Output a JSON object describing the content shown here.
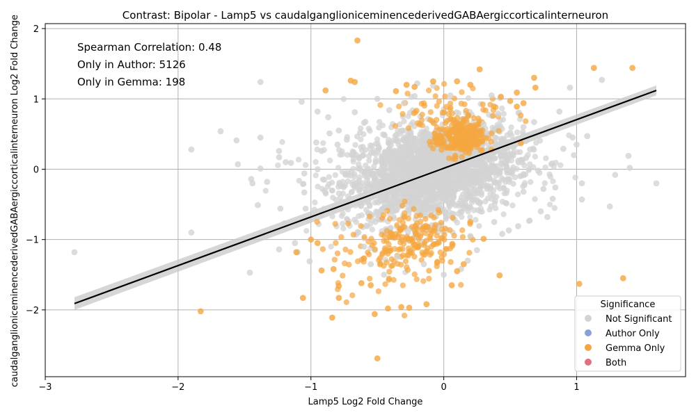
{
  "chart_data": {
    "type": "scatter",
    "title": "Contrast: Bipolar - Lamp5 vs caudalganglioniceminencederivedGABAergiccorticalinterneuron",
    "xlabel": "Lamp5 Log2 Fold Change",
    "ylabel": "caudalganglioniceminencederivedGABAergiccorticalinterneuron Log2 Fold Change",
    "xlim": [
      -3.0,
      1.82
    ],
    "ylim": [
      -2.95,
      2.07
    ],
    "x_ticks": [
      -3,
      -2,
      -1,
      0,
      1
    ],
    "x_tick_labels": [
      "−3",
      "−2",
      "−1",
      "0",
      "1"
    ],
    "y_ticks": [
      -2,
      -1,
      0,
      1,
      2
    ],
    "y_tick_labels": [
      "−2",
      "−1",
      "0",
      "1",
      "2"
    ],
    "grid": true,
    "annotations": [
      "Spearman Correlation: 0.48",
      "Only in Author: 5126",
      "Only in Gemma: 198"
    ],
    "legend": {
      "title": "Significance",
      "placement": "lower-right",
      "entries": [
        {
          "label": "Not Significant",
          "color": "#d3d3d3"
        },
        {
          "label": "Author Only",
          "color": "#88a0d8"
        },
        {
          "label": "Gemma Only",
          "color": "#f5a640"
        },
        {
          "label": "Both",
          "color": "#e07080"
        }
      ]
    },
    "regression": {
      "start": [
        -2.78,
        -1.91
      ],
      "end": [
        1.6,
        1.12
      ],
      "ci_halfwidth_start": 0.09,
      "ci_halfwidth_end": 0.07
    },
    "series": [
      {
        "name": "Not Significant",
        "color": "#d3d3d3",
        "points": [
          [
            -2.78,
            -1.18
          ],
          [
            -1.9,
            0.28
          ],
          [
            -1.9,
            -0.9
          ],
          [
            -1.68,
            0.54
          ],
          [
            -1.56,
            0.41
          ],
          [
            -1.55,
            0.07
          ],
          [
            -1.45,
            -0.14
          ],
          [
            -1.44,
            -0.2
          ],
          [
            -1.46,
            -1.47
          ],
          [
            -1.38,
            1.24
          ],
          [
            -1.38,
            0.45
          ],
          [
            -1.38,
            0.01
          ],
          [
            -1.4,
            -0.51
          ],
          [
            -1.33,
            -0.18
          ],
          [
            -1.24,
            0.26
          ],
          [
            -1.24,
            0.17
          ],
          [
            -1.23,
            -0.56
          ],
          [
            -1.24,
            -1.14
          ],
          [
            -1.19,
            0.1
          ],
          [
            -1.15,
            0.09
          ],
          [
            -1.2,
            -0.77
          ],
          [
            -1.12,
            -1.05
          ],
          [
            -1.1,
            -1.18
          ],
          [
            -1.07,
            0.96
          ],
          [
            -1.05,
            -0.06
          ],
          [
            -1.05,
            -0.33
          ],
          [
            -1.04,
            -0.56
          ],
          [
            -1.01,
            -1.31
          ],
          [
            -0.95,
            0.82
          ],
          [
            -0.96,
            0.38
          ],
          [
            -0.92,
            0.26
          ],
          [
            -0.87,
            0.74
          ],
          [
            -0.86,
            0.51
          ],
          [
            -0.79,
            0.55
          ],
          [
            -0.73,
            0.42
          ],
          [
            -0.67,
            0.81
          ],
          [
            -0.63,
            0.52
          ],
          [
            -0.6,
            0.66
          ],
          [
            -0.55,
            -1.35
          ],
          [
            -0.41,
            0.84
          ],
          [
            -0.3,
            0.94
          ],
          [
            -0.22,
            1.04
          ],
          [
            -0.2,
            1.22
          ],
          [
            -0.08,
            1.19
          ],
          [
            0.05,
            1.05
          ],
          [
            0.13,
            -1.42
          ],
          [
            0.18,
            -1.3
          ],
          [
            0.3,
            0.64
          ],
          [
            0.41,
            0.79
          ],
          [
            0.47,
            0.33
          ],
          [
            0.5,
            0.52
          ],
          [
            0.56,
            0.12
          ],
          [
            0.6,
            -0.32
          ],
          [
            0.62,
            0.16
          ],
          [
            0.65,
            0.28
          ],
          [
            0.68,
            0.67
          ],
          [
            0.71,
            -0.02
          ],
          [
            0.73,
            -0.6
          ],
          [
            0.75,
            -0.28
          ],
          [
            0.77,
            0.51
          ],
          [
            0.78,
            -0.68
          ],
          [
            0.82,
            -0.42
          ],
          [
            0.84,
            -0.26
          ],
          [
            0.87,
            0.82
          ],
          [
            0.9,
            0.29
          ],
          [
            0.95,
            1.16
          ],
          [
            0.97,
            0.45
          ],
          [
            0.98,
            0.2
          ],
          [
            1.0,
            0.35
          ],
          [
            1.04,
            -0.2
          ],
          [
            1.04,
            -0.43
          ],
          [
            1.08,
            0.47
          ],
          [
            1.19,
            1.27
          ],
          [
            1.25,
            -0.53
          ],
          [
            1.29,
            -0.08
          ],
          [
            1.39,
            0.19
          ],
          [
            1.4,
            0.02
          ],
          [
            1.6,
            -0.2
          ],
          [
            0.49,
            -0.87
          ],
          [
            0.44,
            -0.92
          ],
          [
            0.56,
            -0.81
          ],
          [
            0.2,
            -0.95
          ],
          [
            -0.45,
            -1.5
          ],
          [
            -0.35,
            -1.25
          ],
          [
            0.0,
            -1.5
          ],
          [
            -0.6,
            -1.1
          ],
          [
            -0.5,
            1.0
          ],
          [
            0.36,
            1.05
          ],
          [
            -0.8,
            0.35
          ],
          [
            -0.9,
            -0.15
          ],
          [
            0.25,
            -1.15
          ],
          [
            -0.15,
            -1.35
          ],
          [
            0.38,
            -0.75
          ],
          [
            0.6,
            0.6
          ],
          [
            -0.95,
            0.0
          ]
        ]
      },
      {
        "name": "Gemma Only",
        "color": "#f5a640",
        "points": [
          [
            -0.65,
            1.83
          ],
          [
            -0.89,
            1.12
          ],
          [
            -0.7,
            1.26
          ],
          [
            -0.67,
            1.24
          ],
          [
            -0.36,
            1.11
          ],
          [
            -0.28,
            1.2
          ],
          [
            -0.22,
            1.17
          ],
          [
            -0.08,
            1.25
          ],
          [
            0.1,
            1.25
          ],
          [
            0.2,
            1.2
          ],
          [
            0.27,
            1.42
          ],
          [
            0.55,
            1.09
          ],
          [
            0.68,
            1.3
          ],
          [
            0.69,
            1.16
          ],
          [
            1.13,
            1.44
          ],
          [
            1.42,
            1.44
          ],
          [
            0.43,
            1.03
          ],
          [
            0.5,
            0.97
          ],
          [
            0.55,
            0.89
          ],
          [
            0.6,
            0.94
          ],
          [
            0.58,
            0.37
          ],
          [
            0.3,
            -0.99
          ],
          [
            0.2,
            -0.75
          ],
          [
            0.42,
            -1.51
          ],
          [
            -0.52,
            -2.06
          ],
          [
            -0.5,
            -2.69
          ],
          [
            -0.84,
            -2.11
          ],
          [
            -1.06,
            -1.83
          ],
          [
            -1.83,
            -2.02
          ],
          [
            -0.42,
            -1.98
          ],
          [
            -0.32,
            -1.96
          ],
          [
            -0.26,
            -1.97
          ],
          [
            -0.13,
            -1.92
          ],
          [
            -0.62,
            -1.62
          ],
          [
            -0.79,
            -1.66
          ],
          [
            -0.79,
            -1.83
          ],
          [
            -0.83,
            -1.42
          ],
          [
            -0.92,
            -1.44
          ],
          [
            -0.55,
            -1.65
          ],
          [
            0.06,
            -1.65
          ],
          [
            1.02,
            -1.63
          ],
          [
            1.35,
            -1.55
          ],
          [
            -0.05,
            -1.33
          ],
          [
            0.1,
            -1.45
          ],
          [
            0.15,
            -1.35
          ],
          [
            -1.11,
            -1.18
          ],
          [
            -1.0,
            -1.0
          ],
          [
            -0.95,
            -1.05
          ]
        ]
      }
    ],
    "clusters": [
      {
        "series": "Not Significant",
        "color": "#d3d3d3",
        "count": 2200,
        "cx": -0.1,
        "cy": -0.05,
        "sx": 0.33,
        "sy": 0.34,
        "slope": 0.25
      },
      {
        "series": "Gemma Only",
        "color": "#f5a640",
        "count": 230,
        "cx": 0.12,
        "cy": 0.45,
        "sx": 0.1,
        "sy": 0.13,
        "slope": 0.2
      },
      {
        "series": "Gemma Only",
        "color": "#f5a640",
        "count": 160,
        "cx": -0.22,
        "cy": -0.95,
        "sx": 0.17,
        "sy": 0.2,
        "slope": 0.0
      },
      {
        "series": "Gemma Only",
        "color": "#f5a640",
        "count": 70,
        "cx": 0.05,
        "cy": 0.8,
        "sx": 0.22,
        "sy": 0.2,
        "slope": 0.0
      },
      {
        "series": "Gemma Only",
        "color": "#f5a640",
        "count": 70,
        "cx": -0.45,
        "cy": -1.3,
        "sx": 0.25,
        "sy": 0.25,
        "slope": 0.0
      }
    ]
  }
}
